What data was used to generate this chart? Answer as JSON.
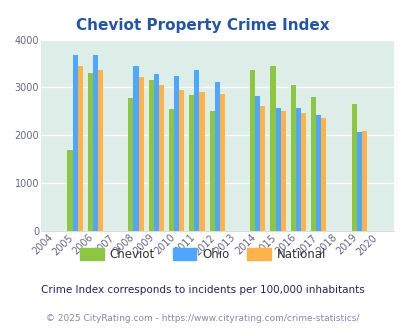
{
  "title": "Cheviot Property Crime Index",
  "years": [
    2004,
    2005,
    2006,
    2007,
    2008,
    2009,
    2010,
    2011,
    2012,
    2013,
    2014,
    2015,
    2016,
    2017,
    2018,
    2019,
    2020
  ],
  "cheviot": [
    null,
    1700,
    3300,
    null,
    2780,
    3150,
    2540,
    2840,
    2500,
    null,
    3370,
    3440,
    3060,
    2800,
    null,
    2660,
    null
  ],
  "ohio": [
    null,
    3670,
    3670,
    null,
    3450,
    3290,
    3240,
    3370,
    3120,
    null,
    2820,
    2580,
    2570,
    2420,
    null,
    2060,
    null
  ],
  "national": [
    null,
    3440,
    3360,
    null,
    3210,
    3050,
    2940,
    2900,
    2860,
    null,
    2620,
    2510,
    2460,
    2360,
    null,
    2080,
    null
  ],
  "cheviot_color": "#8dc63f",
  "ohio_color": "#4da6ff",
  "national_color": "#ffb347",
  "fig_bg_color": "#ffffff",
  "plot_bg_color": "#ddeee8",
  "ylim": [
    0,
    4000
  ],
  "yticks": [
    0,
    1000,
    2000,
    3000,
    4000
  ],
  "title_color": "#2255aa",
  "title_fontsize": 11,
  "tick_fontsize": 7,
  "legend_fontsize": 8.5,
  "legend_text_color": "#333333",
  "note_text": "Crime Index corresponds to incidents per 100,000 inhabitants",
  "note_color": "#222266",
  "note_fontsize": 7.5,
  "copyright_text": "© 2025 CityRating.com - https://www.cityrating.com/crime-statistics/",
  "copyright_color": "#8888aa",
  "copyright_fontsize": 6.5,
  "bar_width": 0.25
}
